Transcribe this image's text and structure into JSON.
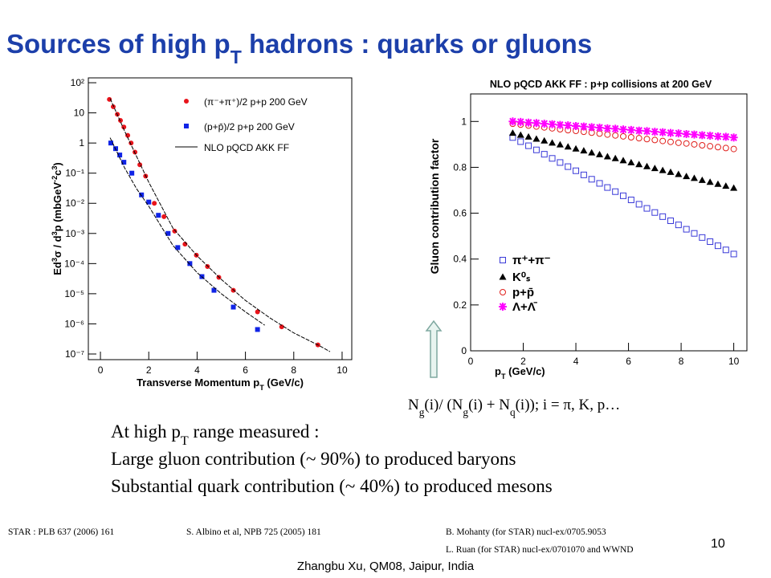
{
  "title": {
    "parts": [
      "Sources of high p",
      {
        "sub": "T"
      },
      " hadrons : quarks or gluons"
    ]
  },
  "chart_data": [
    {
      "type": "scatter",
      "yscale": "log",
      "xlabel": {
        "parts": [
          "Transverse Momentum p",
          {
            "sub": "T"
          },
          " (GeV/c)"
        ]
      },
      "ylabel": {
        "parts": [
          "Ed",
          {
            "sup": "3"
          },
          "σ / d",
          {
            "sup": "3"
          },
          "p (mbGeV",
          {
            "sup": "-2"
          },
          "c",
          {
            "sup": "3"
          },
          ")"
        ]
      },
      "xlim": [
        -0.5,
        10.4
      ],
      "ylim": [
        6.5e-08,
        145
      ],
      "xticks": [
        0,
        2,
        4,
        6,
        8,
        10
      ],
      "yticks": [
        {
          "value": 1e-07,
          "label": "10⁻⁷"
        },
        {
          "value": 1e-06,
          "label": "10⁻⁶"
        },
        {
          "value": 1e-05,
          "label": "10⁻⁵"
        },
        {
          "value": 0.0001,
          "label": "10⁻⁴"
        },
        {
          "value": 0.001,
          "label": "10⁻³"
        },
        {
          "value": 0.01,
          "label": "10⁻²"
        },
        {
          "value": 0.1,
          "label": "10⁻¹"
        },
        1,
        10,
        {
          "value": 100,
          "label": "10²"
        }
      ],
      "legend": "upper right",
      "series": [
        {
          "name": "(π⁻+π⁺)/2 p+p 200 GeV",
          "color": "#e8141b",
          "marker": "circle",
          "x": [
            0.37,
            0.53,
            0.7,
            0.83,
            0.97,
            1.13,
            1.27,
            1.43,
            1.63,
            1.87,
            2.23,
            2.63,
            3.07,
            3.5,
            3.97,
            4.43,
            4.9,
            5.5,
            6.5,
            7.5,
            9.0
          ],
          "values": [
            28,
            16,
            9,
            5.6,
            3.4,
            1.8,
            1,
            0.5,
            0.19,
            0.08,
            0.01,
            0.0036,
            0.0012,
            0.00044,
            0.00019,
            8e-05,
            3.5e-05,
            1.3e-05,
            2.5e-06,
            8e-07,
            2e-07
          ]
        },
        {
          "name": "(p+p̄)/2 p+p 200 GeV",
          "color": "#1024e6",
          "marker": "square",
          "x": [
            0.43,
            0.63,
            0.8,
            0.97,
            1.3,
            1.7,
            2.0,
            2.4,
            2.8,
            3.2,
            3.7,
            4.2,
            4.7,
            5.5,
            6.5
          ],
          "values": [
            1,
            0.65,
            0.4,
            0.23,
            0.1,
            0.019,
            0.011,
            0.004,
            0.001,
            0.00034,
            0.0001,
            3.7e-05,
            1.3e-05,
            3.6e-06,
            6.5e-07
          ]
        },
        {
          "name": "NLO pQCD AKK FF",
          "color": "#000000",
          "marker": "line",
          "x": [
            0.4,
            1,
            2,
            3,
            4,
            5,
            6,
            7,
            8,
            9,
            9.5,
            null,
            0.4,
            1,
            1.5,
            2,
            3,
            4,
            5,
            6,
            6.8
          ],
          "values": [
            30,
            2.5,
            0.05,
            0.0015,
            0.00018,
            3e-05,
            6e-06,
            1.6e-06,
            5e-07,
            2e-07,
            1.2e-07,
            null,
            1.5,
            0.15,
            0.03,
            0.008,
            0.0004,
            5e-05,
            1e-05,
            2.5e-06,
            9e-07
          ]
        }
      ]
    },
    {
      "type": "scatter",
      "title": "NLO pQCD AKK FF : p+p collisions at 200 GeV",
      "xlabel": {
        "parts": [
          "p",
          {
            "sub": "T"
          },
          " (GeV/c)"
        ]
      },
      "ylabel": {
        "parts": [
          "Gluon contribution factor"
        ]
      },
      "xlim": [
        0,
        10.5
      ],
      "ylim": [
        0,
        1.12
      ],
      "xticks": [
        0,
        2,
        4,
        6,
        8,
        10
      ],
      "yticks": [
        0,
        0.2,
        0.4,
        0.6,
        0.8,
        1
      ],
      "legend": "lower left",
      "series": [
        {
          "name": "π⁺+π⁻",
          "color": "#3a3ad8",
          "marker": "open-square",
          "x": [
            1.6,
            1.9,
            2.2,
            2.5,
            2.8,
            3.1,
            3.4,
            3.7,
            4.0,
            4.3,
            4.6,
            4.9,
            5.2,
            5.5,
            5.8,
            6.1,
            6.4,
            6.7,
            7.0,
            7.3,
            7.6,
            7.9,
            8.2,
            8.5,
            8.8,
            9.1,
            9.4,
            9.7,
            10.0
          ],
          "values": [
            0.93,
            0.912,
            0.894,
            0.876,
            0.857,
            0.839,
            0.821,
            0.803,
            0.785,
            0.767,
            0.748,
            0.73,
            0.712,
            0.694,
            0.676,
            0.658,
            0.639,
            0.621,
            0.603,
            0.585,
            0.567,
            0.549,
            0.53,
            0.512,
            0.494,
            0.476,
            0.458,
            0.44,
            0.422
          ]
        },
        {
          "name": "K⁰ₛ",
          "color": "#000000",
          "marker": "triangle",
          "x": [
            1.6,
            1.9,
            2.2,
            2.5,
            2.8,
            3.1,
            3.4,
            3.7,
            4.0,
            4.3,
            4.6,
            4.9,
            5.2,
            5.5,
            5.8,
            6.1,
            6.4,
            6.7,
            7.0,
            7.3,
            7.6,
            7.9,
            8.2,
            8.5,
            8.8,
            9.1,
            9.4,
            9.7,
            10.0
          ],
          "values": [
            0.95,
            0.941,
            0.933,
            0.924,
            0.916,
            0.907,
            0.899,
            0.89,
            0.881,
            0.873,
            0.864,
            0.856,
            0.847,
            0.839,
            0.83,
            0.821,
            0.813,
            0.804,
            0.796,
            0.787,
            0.779,
            0.77,
            0.761,
            0.753,
            0.744,
            0.736,
            0.727,
            0.719,
            0.71
          ]
        },
        {
          "name": "p+p̄",
          "color": "#e0201c",
          "marker": "open-circle",
          "x": [
            1.6,
            1.9,
            2.2,
            2.5,
            2.8,
            3.1,
            3.4,
            3.7,
            4.0,
            4.3,
            4.6,
            4.9,
            5.2,
            5.5,
            5.8,
            6.1,
            6.4,
            6.7,
            7.0,
            7.3,
            7.6,
            7.9,
            8.2,
            8.5,
            8.8,
            9.1,
            9.4,
            9.7,
            10.0
          ],
          "values": [
            0.99,
            0.986,
            0.982,
            0.978,
            0.974,
            0.97,
            0.966,
            0.962,
            0.959,
            0.955,
            0.951,
            0.947,
            0.943,
            0.939,
            0.935,
            0.931,
            0.927,
            0.923,
            0.919,
            0.915,
            0.911,
            0.907,
            0.904,
            0.9,
            0.896,
            0.892,
            0.888,
            0.884,
            0.88
          ]
        },
        {
          "name": "Λ+Λ̄",
          "color": "#ff00ff",
          "marker": "star",
          "x": [
            1.6,
            1.9,
            2.2,
            2.5,
            2.8,
            3.1,
            3.4,
            3.7,
            4.0,
            4.3,
            4.6,
            4.9,
            5.2,
            5.5,
            5.8,
            6.1,
            6.4,
            6.7,
            7.0,
            7.3,
            7.6,
            7.9,
            8.2,
            8.5,
            8.8,
            9.1,
            9.4,
            9.7,
            10.0
          ],
          "values": [
            1.0,
            0.998,
            0.995,
            0.993,
            0.99,
            0.988,
            0.985,
            0.983,
            0.98,
            0.978,
            0.975,
            0.973,
            0.97,
            0.968,
            0.965,
            0.963,
            0.96,
            0.958,
            0.955,
            0.953,
            0.95,
            0.948,
            0.945,
            0.943,
            0.94,
            0.938,
            0.935,
            0.933,
            0.93
          ]
        }
      ]
    }
  ],
  "formula": {
    "parts": [
      "N",
      {
        "sub": "g"
      },
      "(i)/ (N",
      {
        "sub": "g"
      },
      "(i) + N",
      {
        "sub": "q"
      },
      "(i)); i = π, K, p…"
    ]
  },
  "bullets": [
    {
      "parts": [
        "At high p",
        {
          "sub": "T"
        },
        " range measured :"
      ]
    },
    {
      "parts": [
        "Large gluon contribution (~ 90%) to produced baryons"
      ]
    },
    {
      "parts": [
        "Substantial quark contribution (~ 40%) to produced mesons"
      ]
    }
  ],
  "references": [
    "STAR : PLB 637 (2006) 161",
    "S. Albino et al, NPB 725 (2005) 181",
    "B. Mohanty (for STAR) nucl-ex/0705.9053",
    "L. Ruan (for STAR) nucl-ex/0701070  and WWND"
  ],
  "page_number": "10",
  "footer": "Zhangbu Xu, QM08, Jaipur, India"
}
